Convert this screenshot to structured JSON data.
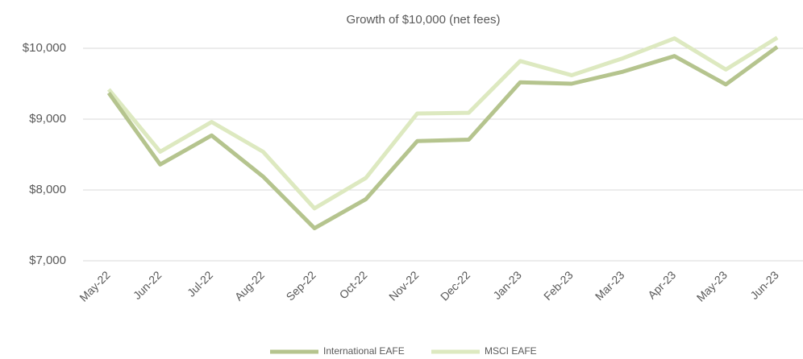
{
  "chart_data": {
    "type": "line",
    "title": "Growth of $10,000 (net fees)",
    "categories": [
      "May-22",
      "Jun-22",
      "Jul-22",
      "Aug-22",
      "Sep-22",
      "Oct-22",
      "Nov-22",
      "Dec-22",
      "Jan-23",
      "Feb-23",
      "Mar-23",
      "Apr-23",
      "May-23",
      "Jun-23"
    ],
    "series": [
      {
        "name": "International EAFE",
        "color": "#b5c48e",
        "values": [
          9370,
          8360,
          8770,
          8190,
          7460,
          7870,
          8690,
          8710,
          9520,
          9500,
          9670,
          9890,
          9490,
          10020
        ]
      },
      {
        "name": "MSCI EAFE",
        "color": "#dde9c0",
        "values": [
          9420,
          8540,
          8960,
          8540,
          7740,
          8170,
          9080,
          9090,
          9820,
          9620,
          9860,
          10140,
          9700,
          10150
        ]
      }
    ],
    "ylim": [
      7000,
      10000
    ],
    "yticks": [
      {
        "value": 7000,
        "label": "$7,000"
      },
      {
        "value": 8000,
        "label": "$8,000"
      },
      {
        "value": 9000,
        "label": "$9,000"
      },
      {
        "value": 10000,
        "label": "$10,000"
      }
    ],
    "grid": true,
    "legend": "bottom"
  }
}
